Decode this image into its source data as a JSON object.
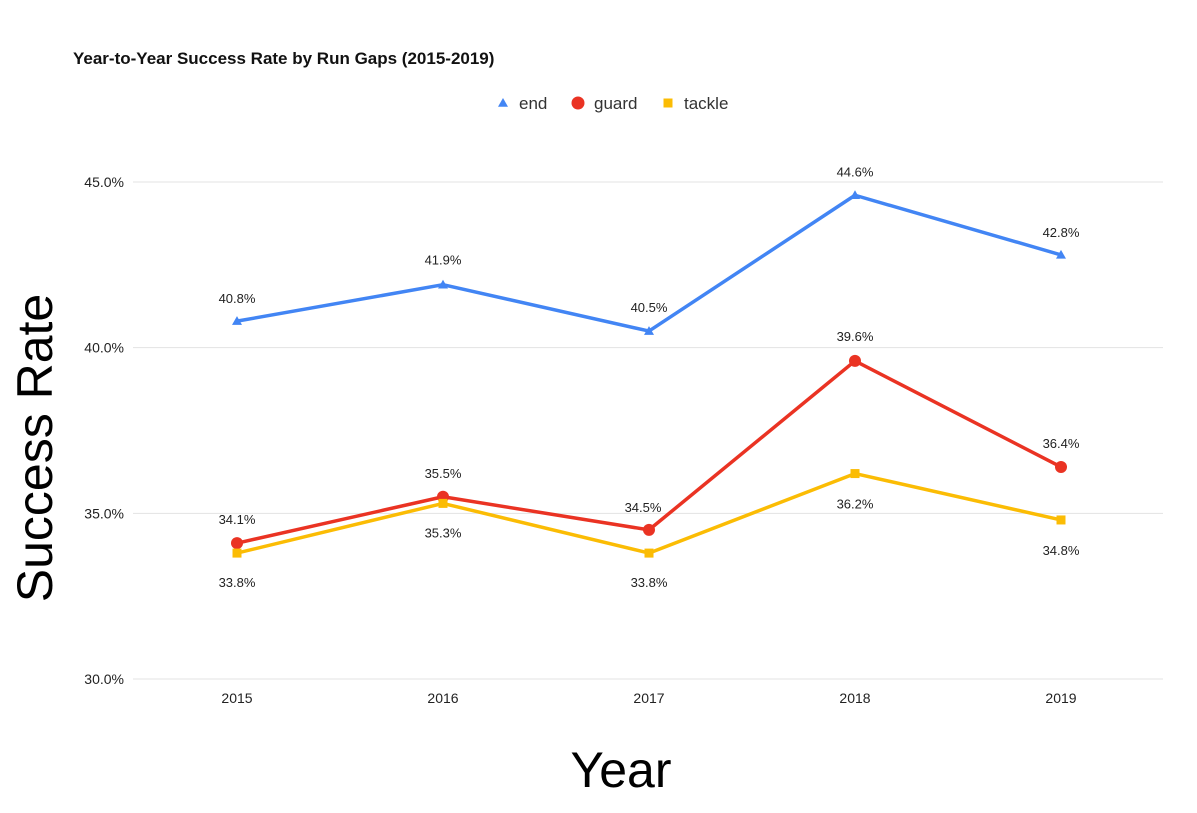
{
  "chart_data": {
    "type": "line",
    "title": "Year-to-Year Success Rate by Run Gaps (2015-2019)",
    "xlabel": "Year",
    "ylabel": "Success Rate",
    "categories": [
      "2015",
      "2016",
      "2017",
      "2018",
      "2019"
    ],
    "ylim": [
      30,
      45
    ],
    "yticks": [
      30,
      35,
      40,
      45
    ],
    "ytick_labels": [
      "30.0%",
      "35.0%",
      "40.0%",
      "45.0%"
    ],
    "grid": true,
    "legend_position": "top-center",
    "series": [
      {
        "name": "end",
        "marker": "triangle",
        "color": "#4285f4",
        "values": [
          40.8,
          41.9,
          40.5,
          44.6,
          42.8
        ],
        "labels": [
          "40.8%",
          "41.9%",
          "40.5%",
          "44.6%",
          "42.8%"
        ]
      },
      {
        "name": "guard",
        "marker": "circle",
        "color": "#ea3323",
        "values": [
          34.1,
          35.5,
          34.5,
          39.6,
          36.4
        ],
        "labels": [
          "34.1%",
          "35.5%",
          "34.5%",
          "39.6%",
          "36.4%"
        ]
      },
      {
        "name": "tackle",
        "marker": "square",
        "color": "#fbbc04",
        "values": [
          33.8,
          35.3,
          33.8,
          36.2,
          34.8
        ],
        "labels": [
          "33.8%",
          "35.3%",
          "33.8%",
          "36.2%",
          "34.8%"
        ]
      }
    ]
  }
}
